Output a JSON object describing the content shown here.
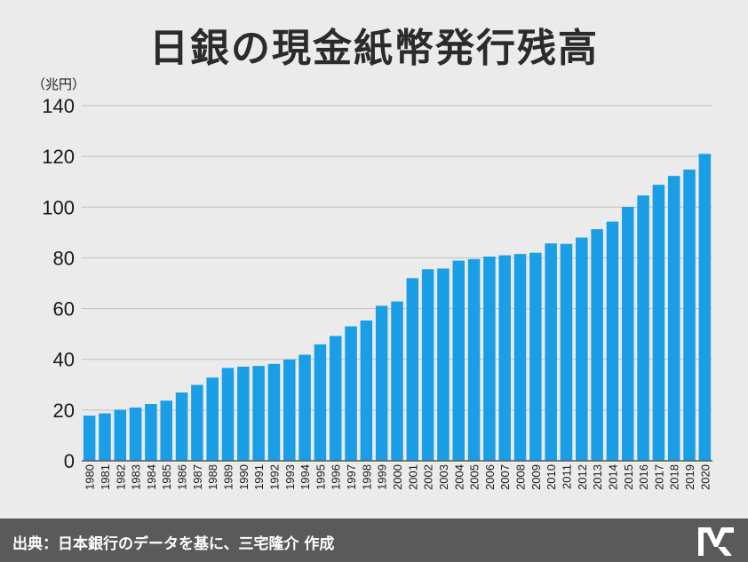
{
  "title": "日銀の現金紙幣発行残高",
  "unit_label": "（兆円）",
  "footer": {
    "source": "出典：日本銀行のデータを基に、三宅隆介 作成"
  },
  "logo": {
    "icon": "logo-icon"
  },
  "colors": {
    "bar": "#1a9ee6",
    "background": "#ebebeb",
    "footer": "#5a5a5a",
    "grid": "#bfbfbf"
  },
  "chart_data": {
    "type": "bar",
    "title": "日銀の現金紙幣発行残高",
    "ylabel": "（兆円）",
    "xlabel": "",
    "ylim": [
      0,
      140
    ],
    "yticks": [
      0,
      20,
      40,
      60,
      80,
      100,
      120,
      140
    ],
    "grid": true,
    "categories": [
      "1980",
      "1981",
      "1982",
      "1983",
      "1984",
      "1985",
      "1986",
      "1987",
      "1988",
      "1989",
      "1990",
      "1991",
      "1992",
      "1993",
      "1994",
      "1995",
      "1996",
      "1997",
      "1998",
      "1999",
      "2000",
      "2001",
      "2002",
      "2003",
      "2004",
      "2005",
      "2006",
      "2007",
      "2008",
      "2009",
      "2010",
      "2011",
      "2012",
      "2013",
      "2014",
      "2015",
      "2016",
      "2017",
      "2018",
      "2019",
      "2020"
    ],
    "values": [
      17.8,
      18.7,
      20.1,
      21.0,
      22.4,
      23.7,
      26.9,
      29.9,
      32.8,
      36.6,
      37.1,
      37.4,
      38.2,
      39.9,
      41.8,
      45.9,
      49.2,
      53.0,
      55.3,
      61.1,
      62.8,
      72.0,
      75.5,
      75.8,
      78.9,
      79.5,
      80.5,
      81.0,
      81.5,
      82.0,
      85.7,
      85.5,
      88.0,
      91.3,
      94.3,
      100.1,
      104.6,
      108.8,
      112.3,
      114.8,
      121.0
    ]
  }
}
